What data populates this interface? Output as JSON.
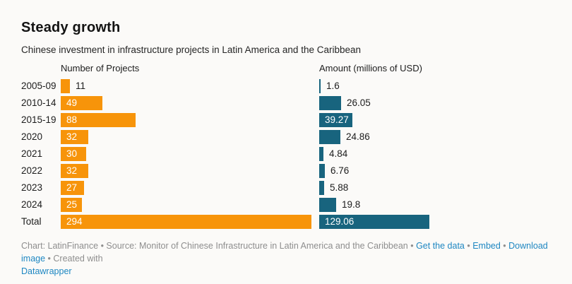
{
  "header": {
    "title": "Steady growth",
    "subtitle": "Chinese investment in infrastructure projects in Latin America and the Caribbean"
  },
  "chart_data": {
    "type": "bar",
    "orientation": "horizontal",
    "categories": [
      "2005-09",
      "2010-14",
      "2015-19",
      "2020",
      "2021",
      "2022",
      "2023",
      "2024",
      "Total"
    ],
    "series": [
      {
        "name": "Number of Projects",
        "values": [
          11,
          49,
          88,
          32,
          30,
          32,
          27,
          25,
          294
        ],
        "color": "#f7940a"
      },
      {
        "name": "Amount (millions of USD)",
        "values": [
          1.6,
          26.05,
          39.27,
          24.86,
          4.84,
          6.76,
          5.88,
          19.8,
          129.06
        ],
        "color": "#18647e"
      }
    ],
    "value_labels": true,
    "shared_scale_max": 294,
    "grid": false,
    "legend_position": "column-headers"
  },
  "footer": {
    "credit": "Chart: LatinFinance",
    "separator": "•",
    "source": "Source: Monitor of Chinese Infrastructure in Latin America and the Caribbean",
    "links": [
      {
        "label": "Get the data"
      },
      {
        "label": "Embed"
      },
      {
        "label": "Download image"
      }
    ],
    "created_with": "Created with",
    "brand_link": "Datawrapper"
  },
  "colors": {
    "projects_bar": "#f7940a",
    "amount_bar": "#18647e",
    "link_blue": "#1e87c2",
    "background": "#fbfaf8",
    "label_dark": "#1d1d1d",
    "footer_gray": "#8e8e8e"
  }
}
